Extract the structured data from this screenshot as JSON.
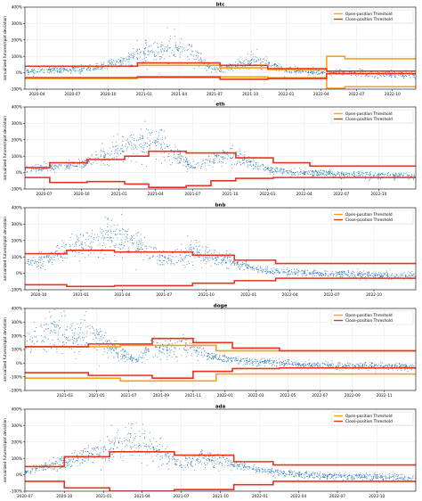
{
  "colors": {
    "scatter": "#1f77b4",
    "open_threshold": "#ff9f1a",
    "close_threshold": "#e8331e",
    "grid": "#e6e6e6",
    "axis": "#000000"
  },
  "shared": {
    "ylabel": "annualized futures/spot deviation",
    "legend": [
      "Open-position Threshold",
      "Close-position Threshold"
    ],
    "ylim": [
      -100,
      400
    ],
    "yticks": [
      "-100%",
      "0%",
      "100%",
      "200%",
      "300%",
      "400%"
    ]
  },
  "chart_data": [
    {
      "type": "scatter",
      "title": "btc",
      "ylim": [
        -100,
        400
      ],
      "yticks": [
        "-100%",
        "0%",
        "100%",
        "200%",
        "300%",
        "400%"
      ],
      "xlim": [
        "2020-03-01",
        "2022-11-30"
      ],
      "xticks": [
        "2020-04",
        "2020-07",
        "2020-10",
        "2021-01",
        "2021-04",
        "2021-07",
        "2021-10",
        "2022-01",
        "2022-04",
        "2022-07",
        "2022-10"
      ],
      "legend_position": "top-right",
      "grid": true,
      "cloud": [
        [
          "2020-03-15",
          10
        ],
        [
          "2020-05-01",
          18
        ],
        [
          "2020-06-15",
          20
        ],
        [
          "2020-08-01",
          30
        ],
        [
          "2020-09-15",
          45
        ],
        [
          "2020-11-01",
          70
        ],
        [
          "2020-12-15",
          110
        ],
        [
          "2021-01-15",
          140
        ],
        [
          "2021-02-15",
          150
        ],
        [
          "2021-03-15",
          155
        ],
        [
          "2021-04-15",
          140
        ],
        [
          "2021-05-15",
          100
        ],
        [
          "2021-06-15",
          40
        ],
        [
          "2021-07-15",
          20
        ],
        [
          "2021-08-15",
          45
        ],
        [
          "2021-09-15",
          60
        ],
        [
          "2021-10-15",
          80
        ],
        [
          "2021-11-15",
          60
        ],
        [
          "2021-12-15",
          30
        ],
        [
          "2022-01-15",
          15
        ],
        [
          "2022-03-01",
          10
        ],
        [
          "2022-05-01",
          5
        ],
        [
          "2022-07-01",
          0
        ],
        [
          "2022-09-01",
          -5
        ],
        [
          "2022-11-30",
          -10
        ]
      ],
      "open_upper": [
        [
          "2020-03-01",
          40
        ],
        [
          "2020-12-15",
          45
        ],
        [
          "2021-07-15",
          30
        ],
        [
          "2021-11-15",
          20
        ],
        [
          "2022-04-15",
          100
        ],
        [
          "2022-06-01",
          85
        ],
        [
          "2022-11-30",
          85
        ]
      ],
      "open_lower": [
        [
          "2020-03-01",
          -35
        ],
        [
          "2020-12-15",
          -30
        ],
        [
          "2021-07-15",
          -25
        ],
        [
          "2021-11-15",
          -30
        ],
        [
          "2022-04-15",
          -95
        ],
        [
          "2022-06-01",
          -85
        ],
        [
          "2022-11-30",
          -85
        ]
      ],
      "close_upper": [
        [
          "2020-03-01",
          40
        ],
        [
          "2020-12-15",
          60
        ],
        [
          "2021-07-15",
          45
        ],
        [
          "2021-11-15",
          25
        ],
        [
          "2022-04-15",
          10
        ],
        [
          "2022-11-30",
          10
        ]
      ],
      "close_lower": [
        [
          "2020-03-01",
          -30
        ],
        [
          "2020-12-15",
          -25
        ],
        [
          "2021-07-15",
          -40
        ],
        [
          "2021-11-15",
          -35
        ],
        [
          "2022-04-15",
          -5
        ],
        [
          "2022-11-30",
          -5
        ]
      ]
    },
    {
      "type": "scatter",
      "title": "eth",
      "ylim": [
        -100,
        400
      ],
      "yticks": [
        "-100%",
        "0%",
        "100%",
        "200%",
        "300%",
        "400%"
      ],
      "xlim": [
        "2020-05-15",
        "2022-12-31"
      ],
      "xticks": [
        "2020-07",
        "2020-10",
        "2021-01",
        "2021-04",
        "2021-07",
        "2021-10",
        "2022-01",
        "2022-04",
        "2022-07",
        "2022-10"
      ],
      "legend_position": "top-right",
      "grid": true,
      "cloud": [
        [
          "2020-05-15",
          20
        ],
        [
          "2020-07-01",
          30
        ],
        [
          "2020-08-15",
          40
        ],
        [
          "2020-10-01",
          60
        ],
        [
          "2020-11-15",
          90
        ],
        [
          "2021-01-01",
          150
        ],
        [
          "2021-02-15",
          180
        ],
        [
          "2021-04-01",
          190
        ],
        [
          "2021-05-15",
          130
        ],
        [
          "2021-07-01",
          30
        ],
        [
          "2021-08-15",
          80
        ],
        [
          "2021-10-01",
          110
        ],
        [
          "2021-11-15",
          70
        ],
        [
          "2022-01-01",
          20
        ],
        [
          "2022-03-01",
          5
        ],
        [
          "2022-05-01",
          0
        ],
        [
          "2022-07-01",
          -10
        ],
        [
          "2022-09-01",
          -10
        ],
        [
          "2022-12-31",
          -20
        ]
      ],
      "close_upper": [
        [
          "2020-05-15",
          30
        ],
        [
          "2020-07-15",
          60
        ],
        [
          "2020-10-15",
          80
        ],
        [
          "2021-01-15",
          100
        ],
        [
          "2021-03-15",
          130
        ],
        [
          "2021-06-15",
          120
        ],
        [
          "2021-10-15",
          90
        ],
        [
          "2022-01-15",
          60
        ],
        [
          "2022-04-15",
          40
        ],
        [
          "2022-12-31",
          40
        ]
      ],
      "close_lower": [
        [
          "2020-05-15",
          -30
        ],
        [
          "2020-07-15",
          -60
        ],
        [
          "2020-10-15",
          -55
        ],
        [
          "2021-01-15",
          -70
        ],
        [
          "2021-03-15",
          -90
        ],
        [
          "2021-06-15",
          -80
        ],
        [
          "2021-08-15",
          -50
        ],
        [
          "2021-10-15",
          -35
        ],
        [
          "2022-01-15",
          -30
        ],
        [
          "2022-12-31",
          -30
        ]
      ]
    },
    {
      "type": "scatter",
      "title": "bnb",
      "ylim": [
        -100,
        400
      ],
      "yticks": [
        "-100%",
        "0%",
        "100%",
        "200%",
        "300%",
        "400%"
      ],
      "xlim": [
        "2020-09-01",
        "2022-12-31"
      ],
      "xticks": [
        "2020-10",
        "2021-01",
        "2021-04",
        "2021-07",
        "2021-10",
        "2022-01",
        "2022-04",
        "2022-07",
        "2022-10"
      ],
      "legend_position": "top-right",
      "grid": true,
      "cloud": [
        [
          "2020-09-01",
          60
        ],
        [
          "2020-10-15",
          90
        ],
        [
          "2020-12-01",
          140
        ],
        [
          "2021-01-15",
          180
        ],
        [
          "2021-03-01",
          220
        ],
        [
          "2021-04-15",
          200
        ],
        [
          "2021-06-01",
          120
        ],
        [
          "2021-07-15",
          80
        ],
        [
          "2021-09-01",
          140
        ],
        [
          "2021-10-15",
          110
        ],
        [
          "2021-12-01",
          60
        ],
        [
          "2022-02-01",
          20
        ],
        [
          "2022-04-01",
          10
        ],
        [
          "2022-06-01",
          0
        ],
        [
          "2022-08-01",
          0
        ],
        [
          "2022-10-01",
          -10
        ],
        [
          "2022-12-31",
          -15
        ]
      ],
      "close_upper": [
        [
          "2020-09-01",
          120
        ],
        [
          "2020-12-01",
          140
        ],
        [
          "2021-03-15",
          130
        ],
        [
          "2021-09-01",
          110
        ],
        [
          "2021-12-01",
          80
        ],
        [
          "2022-03-01",
          60
        ],
        [
          "2022-12-31",
          60
        ]
      ],
      "close_lower": [
        [
          "2020-09-01",
          -70
        ],
        [
          "2020-12-01",
          -80
        ],
        [
          "2021-03-15",
          -75
        ],
        [
          "2021-09-01",
          -60
        ],
        [
          "2021-12-01",
          -45
        ],
        [
          "2022-03-01",
          -30
        ],
        [
          "2022-12-31",
          -30
        ]
      ]
    },
    {
      "type": "scatter",
      "title": "doge",
      "ylim": [
        -200,
        400
      ],
      "yticks": [
        "-200%",
        "-100%",
        "0%",
        "100%",
        "200%",
        "300%",
        "400%"
      ],
      "xlim": [
        "2020-12-15",
        "2022-12-31"
      ],
      "xticks": [
        "2021-03",
        "2021-05",
        "2021-07",
        "2021-09",
        "2021-11",
        "2022-01",
        "2022-03",
        "2022-05",
        "2022-07",
        "2022-09",
        "2022-11"
      ],
      "legend_position": "top-right",
      "grid": true,
      "cloud": [
        [
          "2020-12-15",
          150
        ],
        [
          "2021-01-15",
          200
        ],
        [
          "2021-02-15",
          250
        ],
        [
          "2021-03-15",
          180
        ],
        [
          "2021-04-15",
          220
        ],
        [
          "2021-05-15",
          150
        ],
        [
          "2021-06-15",
          80
        ],
        [
          "2021-07-15",
          20
        ],
        [
          "2021-08-15",
          120
        ],
        [
          "2021-09-15",
          100
        ],
        [
          "2021-10-15",
          150
        ],
        [
          "2021-11-15",
          80
        ],
        [
          "2021-12-15",
          40
        ],
        [
          "2022-02-01",
          20
        ],
        [
          "2022-04-01",
          10
        ],
        [
          "2022-06-01",
          -10
        ],
        [
          "2022-08-01",
          -20
        ],
        [
          "2022-10-01",
          -20
        ],
        [
          "2022-12-31",
          -25
        ]
      ],
      "open_upper": [
        [
          "2020-12-15",
          120
        ],
        [
          "2021-06-15",
          130
        ],
        [
          "2021-12-15",
          90
        ],
        [
          "2022-12-31",
          90
        ]
      ],
      "open_lower": [
        [
          "2020-12-15",
          -110
        ],
        [
          "2021-06-15",
          -130
        ],
        [
          "2021-12-15",
          -80
        ],
        [
          "2022-12-31",
          -80
        ]
      ],
      "close_upper": [
        [
          "2020-12-15",
          120
        ],
        [
          "2021-04-15",
          140
        ],
        [
          "2021-08-15",
          180
        ],
        [
          "2021-11-01",
          150
        ],
        [
          "2022-01-15",
          110
        ],
        [
          "2022-04-15",
          90
        ],
        [
          "2022-12-31",
          90
        ]
      ],
      "close_lower": [
        [
          "2020-12-15",
          -70
        ],
        [
          "2021-04-15",
          -90
        ],
        [
          "2021-08-15",
          -110
        ],
        [
          "2021-11-01",
          -60
        ],
        [
          "2022-01-15",
          -40
        ],
        [
          "2022-04-15",
          -35
        ],
        [
          "2022-12-31",
          -35
        ]
      ]
    },
    {
      "type": "scatter",
      "title": "ada",
      "ylim": [
        -100,
        400
      ],
      "yticks": [
        "-100%",
        "0%",
        "100%",
        "200%",
        "300%",
        "400%"
      ],
      "xlim": [
        "2020-07-01",
        "2022-12-31"
      ],
      "xticks": [
        "2020-07",
        "2020-10",
        "2021-01",
        "2021-04",
        "2021-07",
        "2021-10",
        "2022-01",
        "2022-04",
        "2022-07",
        "2022-10"
      ],
      "legend_position": "top-right",
      "grid": true,
      "cloud": [
        [
          "2020-07-01",
          20
        ],
        [
          "2020-08-15",
          50
        ],
        [
          "2020-10-01",
          80
        ],
        [
          "2020-11-15",
          110
        ],
        [
          "2021-01-01",
          150
        ],
        [
          "2021-02-15",
          200
        ],
        [
          "2021-04-01",
          180
        ],
        [
          "2021-05-15",
          150
        ],
        [
          "2021-07-01",
          60
        ],
        [
          "2021-08-15",
          110
        ],
        [
          "2021-10-01",
          90
        ],
        [
          "2021-11-15",
          60
        ],
        [
          "2022-01-01",
          30
        ],
        [
          "2022-03-01",
          10
        ],
        [
          "2022-05-01",
          0
        ],
        [
          "2022-07-01",
          -10
        ],
        [
          "2022-09-01",
          -10
        ],
        [
          "2022-12-31",
          -20
        ]
      ],
      "close_upper": [
        [
          "2020-07-01",
          50
        ],
        [
          "2020-10-01",
          110
        ],
        [
          "2021-01-15",
          140
        ],
        [
          "2021-06-15",
          120
        ],
        [
          "2021-11-01",
          80
        ],
        [
          "2022-02-01",
          60
        ],
        [
          "2022-12-31",
          60
        ]
      ],
      "close_lower": [
        [
          "2020-07-01",
          -40
        ],
        [
          "2020-10-01",
          -80
        ],
        [
          "2021-01-15",
          -100
        ],
        [
          "2021-06-15",
          -90
        ],
        [
          "2021-11-01",
          -60
        ],
        [
          "2022-02-01",
          -40
        ],
        [
          "2022-12-31",
          -40
        ]
      ]
    }
  ]
}
